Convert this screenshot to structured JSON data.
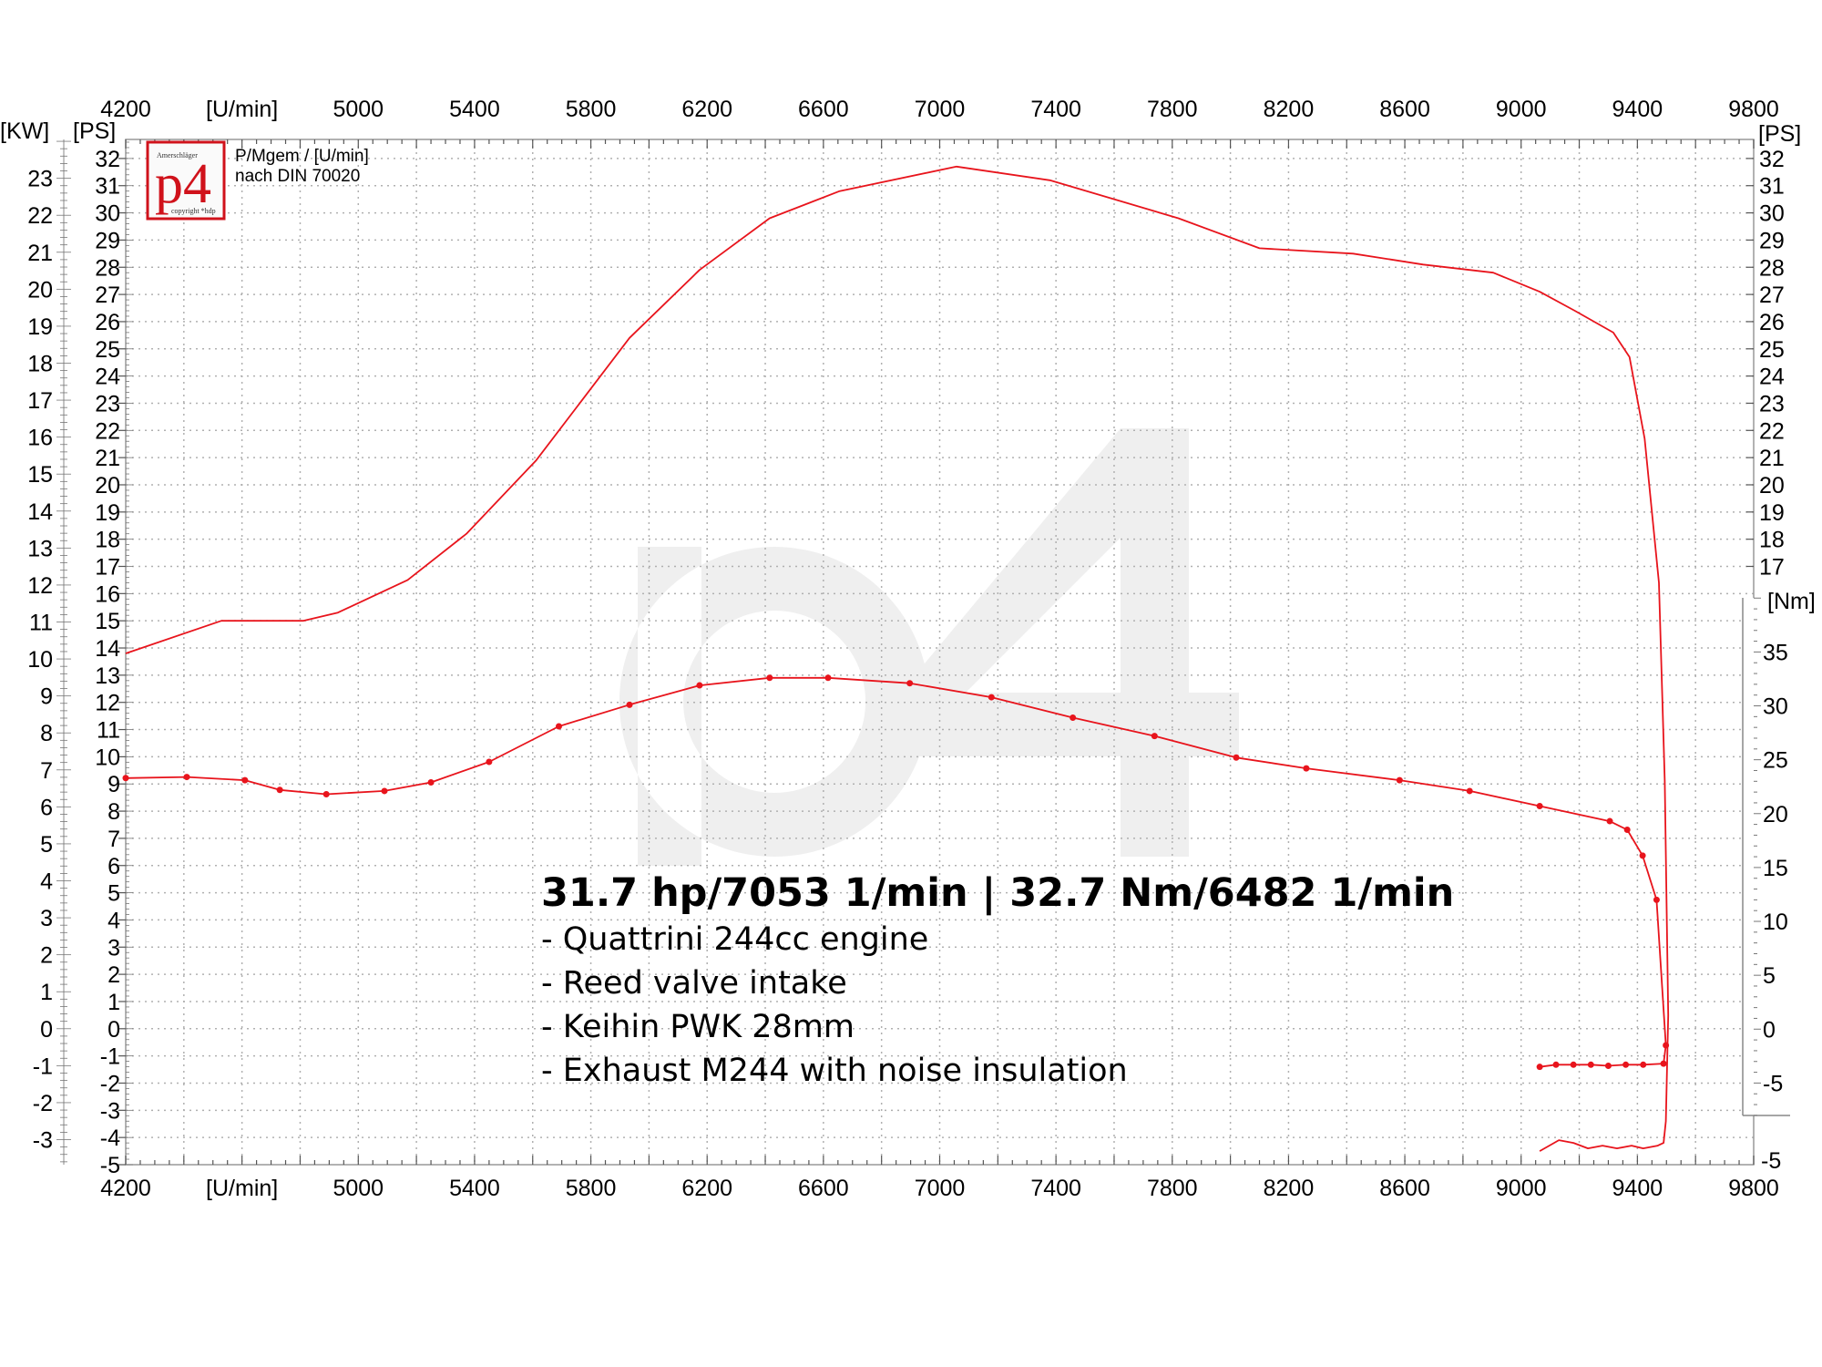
{
  "chart_data": {
    "type": "line",
    "legend_text": [
      "P/Mgem / [U/min]",
      "nach DIN 70020"
    ],
    "xlabel": "[U/min]",
    "ylabel_left_kw": "[KW]",
    "ylabel_left_ps": "[PS]",
    "ylabel_right_ps": "[PS]",
    "ylabel_right_nm": "[Nm]",
    "xlim": [
      4200,
      9800
    ],
    "x_ticks": [
      4200,
      5000,
      5400,
      5800,
      6200,
      6600,
      7000,
      7400,
      7800,
      8200,
      8600,
      9000,
      9400,
      9800
    ],
    "ps_lim": [
      -5,
      32.7
    ],
    "ps_ticks_left": [
      -5,
      -4,
      -3,
      -2,
      -1,
      0,
      1,
      2,
      3,
      4,
      5,
      6,
      7,
      8,
      9,
      10,
      11,
      12,
      13,
      14,
      15,
      16,
      17,
      18,
      19,
      20,
      21,
      22,
      23,
      24,
      25,
      26,
      27,
      28,
      29,
      30,
      31,
      32
    ],
    "ps_ticks_right": [
      17,
      18,
      19,
      20,
      21,
      22,
      23,
      24,
      25,
      26,
      27,
      28,
      29,
      30,
      31,
      32
    ],
    "ps_bottom_right_tick": -5,
    "kw_ticks": [
      -3,
      -2,
      -1,
      0,
      1,
      2,
      3,
      4,
      5,
      6,
      7,
      8,
      9,
      10,
      11,
      12,
      13,
      14,
      15,
      16,
      17,
      18,
      19,
      20,
      21,
      22,
      23
    ],
    "nm_ticks": [
      -5,
      0,
      5,
      10,
      15,
      20,
      25,
      30,
      35
    ],
    "grid": true,
    "colors": {
      "curve": "#e8141c",
      "grid": "#b0b0b0",
      "watermark": "#efefef",
      "logo": "#d0121b"
    },
    "series": [
      {
        "axis": "PS",
        "marker": "none",
        "x": [
          4200,
          4529,
          4810,
          4930,
          5170,
          5372,
          5612,
          5933,
          6174,
          6415,
          6656,
          7058,
          7379,
          7821,
          8100,
          8422,
          8663,
          8904,
          9064,
          9185,
          9317,
          9373,
          9425,
          9474,
          9494,
          9506,
          9498,
          9490,
          9470,
          9420,
          9380,
          9330,
          9280,
          9230,
          9180,
          9130,
          9064
        ],
        "y": [
          13.8,
          15.0,
          15.0,
          15.3,
          16.5,
          18.2,
          20.9,
          25.4,
          27.9,
          29.8,
          30.8,
          31.7,
          31.2,
          29.8,
          28.7,
          28.5,
          28.1,
          27.8,
          27.1,
          26.4,
          25.6,
          24.7,
          21.7,
          16.4,
          9.1,
          0.5,
          -3.4,
          -4.2,
          -4.3,
          -4.4,
          -4.3,
          -4.4,
          -4.3,
          -4.4,
          -4.2,
          -4.1,
          -4.5
        ]
      },
      {
        "axis": "Nm",
        "marker": "dot",
        "x": [
          4200,
          4410,
          4610,
          4730,
          4890,
          5090,
          5250,
          5450,
          5690,
          5933,
          6174,
          6415,
          6616,
          6897,
          7178,
          7458,
          7739,
          8020,
          8261,
          8582,
          8823,
          9064,
          9305,
          9365,
          9418,
          9466,
          9498,
          9490,
          9420,
          9360,
          9300,
          9240,
          9180,
          9120,
          9064
        ],
        "y": [
          23.3,
          23.4,
          23.1,
          22.2,
          21.8,
          22.1,
          22.9,
          24.8,
          28.1,
          30.1,
          31.9,
          32.6,
          32.6,
          32.1,
          30.8,
          28.9,
          27.2,
          25.2,
          24.2,
          23.1,
          22.1,
          20.7,
          19.3,
          18.5,
          16.1,
          12.0,
          -1.5,
          -3.2,
          -3.3,
          -3.3,
          -3.4,
          -3.3,
          -3.3,
          -3.3,
          -3.5
        ]
      }
    ],
    "annotation_title": "31.7 hp/7053 1/min | 32.7 Nm/6482 1/min",
    "annotation_lines": [
      "- Quattrini 244cc engine",
      "- Reed valve intake",
      "- Keihin PWK 28mm",
      "- Exhaust M244 with noise insulation"
    ]
  },
  "logo": {
    "top": "Amerschläger",
    "main": "p4",
    "bottom": "copyright *hdp"
  },
  "watermark": "p4"
}
